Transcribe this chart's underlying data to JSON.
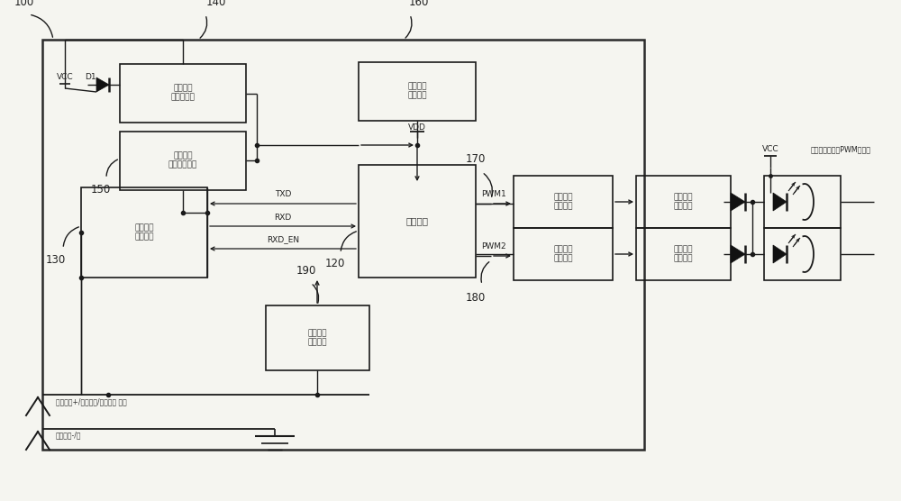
{
  "bg_color": "#f5f5f0",
  "line_color": "#1a1a1a",
  "box_color": "#1a1a1a",
  "text_color": "#3a3a3a",
  "fig_width": 10.0,
  "fig_height": 5.56,
  "dpi": 100,
  "labels": {
    "ref100": "100",
    "ref140": "140",
    "ref160": "160",
    "ref150": "150",
    "ref130": "130",
    "ref120": "120",
    "ref170": "170",
    "ref180": "180",
    "ref190": "190",
    "vcc_top": "VCC",
    "d1": "D1",
    "vdd": "VDD",
    "vcc_right": "VCC",
    "pwm1": "PWM1",
    "pwm2": "PWM2",
    "txd": "TXD",
    "rxd": "RXD",
    "rxd_en": "RXD_EN",
    "box_mcu_main": "微控制器\n主供电单元",
    "box_mcu_slave": "微控制器\n受控供电单元",
    "box_mcu": "微控制器",
    "box_status": "工作状态\n指示单元",
    "box_comm": "通讯信号\n接口电路",
    "box_dimmer": "调光信号\n处理单元",
    "box_volt_set": "输出电压\n设定电路",
    "box_curr_set": "输出电流\n设定电路",
    "box_volt_fb": "输出电压\n反馈控制",
    "box_curr_fb": "输出电流\n反馈控制",
    "feedback_label": "反馈信号至初级PWM控制器",
    "dim_pos": "调光信号+/通讯供电/通讯信号 公用",
    "dim_neg": "调光信号-/地"
  }
}
